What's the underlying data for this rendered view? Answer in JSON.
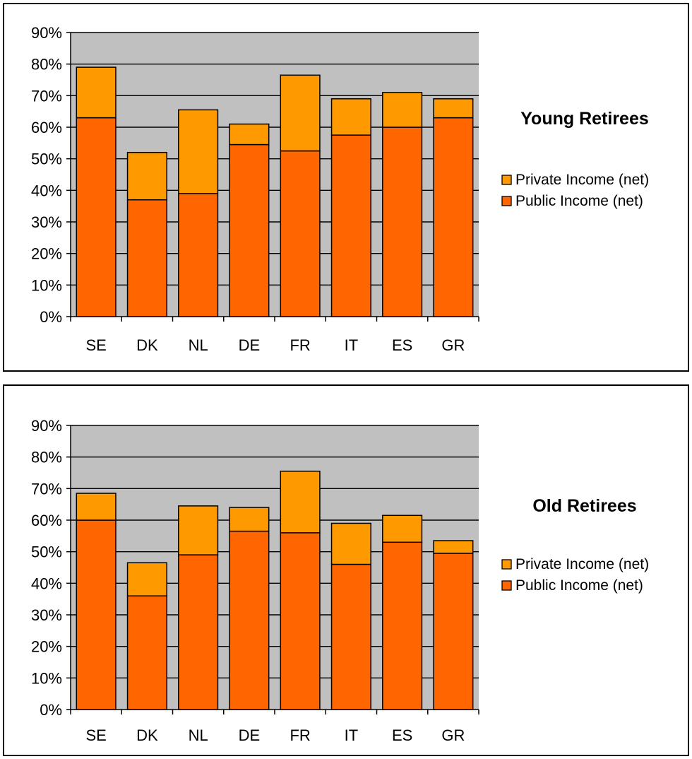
{
  "chart_data": [
    {
      "type": "bar",
      "stacked": true,
      "title": "Young Retirees",
      "categories": [
        "SE",
        "DK",
        "NL",
        "DE",
        "FR",
        "IT",
        "ES",
        "GR"
      ],
      "series": [
        {
          "name": "Public Income (net)",
          "color": "#ff6600",
          "values": [
            63,
            37,
            39,
            54.5,
            52.5,
            57.5,
            60,
            63
          ]
        },
        {
          "name": "Private Income (net)",
          "color": "#ff9900",
          "values": [
            16,
            15,
            26.5,
            6.5,
            24,
            11.5,
            11,
            6
          ]
        }
      ],
      "yticks": [
        "0%",
        "10%",
        "20%",
        "30%",
        "40%",
        "50%",
        "60%",
        "70%",
        "80%",
        "90%"
      ],
      "ylim": [
        0,
        90
      ],
      "grid": true,
      "plot_background": "#c0c0c0",
      "legend_position": "right"
    },
    {
      "type": "bar",
      "stacked": true,
      "title": "Old Retirees",
      "categories": [
        "SE",
        "DK",
        "NL",
        "DE",
        "FR",
        "IT",
        "ES",
        "GR"
      ],
      "series": [
        {
          "name": "Public Income (net)",
          "color": "#ff6600",
          "values": [
            60,
            36,
            49,
            56.5,
            56,
            46,
            53,
            49.5
          ]
        },
        {
          "name": "Private Income (net)",
          "color": "#ff9900",
          "values": [
            8.5,
            10.5,
            15.5,
            7.5,
            19.5,
            13,
            8.5,
            4
          ]
        }
      ],
      "yticks": [
        "0%",
        "10%",
        "20%",
        "30%",
        "40%",
        "50%",
        "60%",
        "70%",
        "80%",
        "90%"
      ],
      "ylim": [
        0,
        90
      ],
      "grid": true,
      "plot_background": "#c0c0c0",
      "legend_position": "right"
    }
  ]
}
